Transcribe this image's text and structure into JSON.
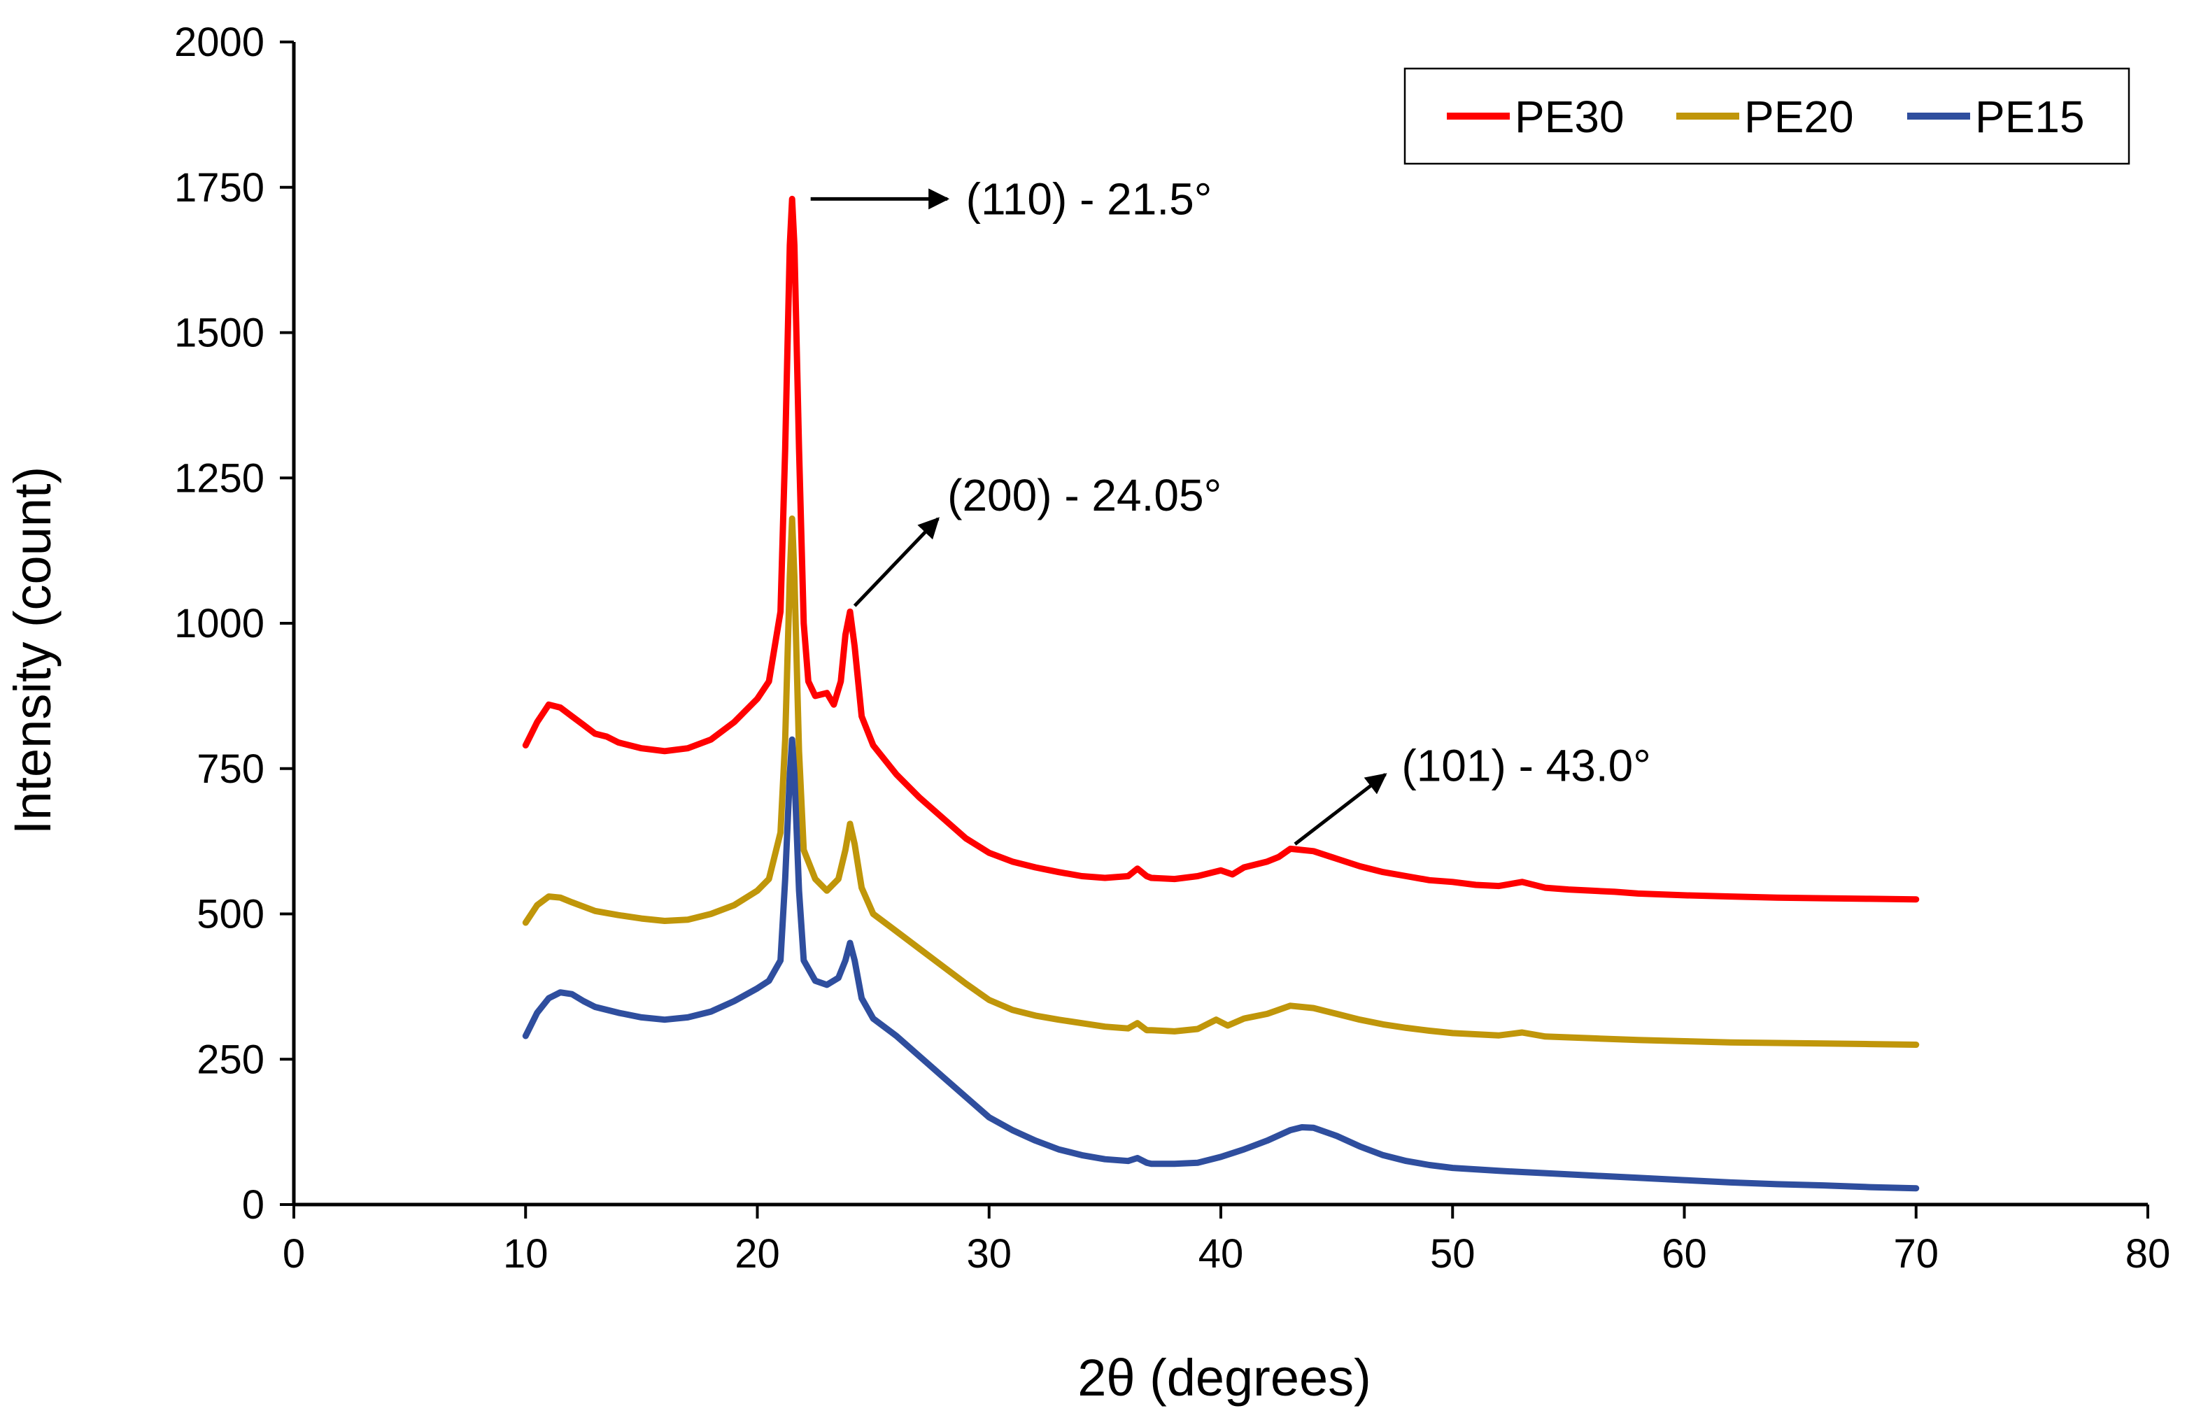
{
  "chart_data": {
    "type": "line",
    "title": "",
    "xlabel": "2θ (degrees)",
    "ylabel": "Intensity (count)",
    "xlim": [
      0,
      80
    ],
    "ylim": [
      0,
      2000
    ],
    "xticks": [
      0,
      10,
      20,
      30,
      40,
      50,
      60,
      70,
      80
    ],
    "yticks": [
      0,
      250,
      500,
      750,
      1000,
      1250,
      1500,
      1750,
      2000
    ],
    "grid": false,
    "legend_position": "top-right",
    "series": [
      {
        "name": "PE30",
        "color": "#FF0000",
        "points": [
          [
            10,
            790
          ],
          [
            10.5,
            830
          ],
          [
            11,
            860
          ],
          [
            11.5,
            855
          ],
          [
            12,
            840
          ],
          [
            12.5,
            825
          ],
          [
            13,
            810
          ],
          [
            13.5,
            805
          ],
          [
            14,
            795
          ],
          [
            15,
            785
          ],
          [
            16,
            780
          ],
          [
            17,
            785
          ],
          [
            18,
            800
          ],
          [
            19,
            830
          ],
          [
            20,
            870
          ],
          [
            20.5,
            900
          ],
          [
            21,
            1020
          ],
          [
            21.2,
            1300
          ],
          [
            21.4,
            1650
          ],
          [
            21.5,
            1730
          ],
          [
            21.6,
            1650
          ],
          [
            21.8,
            1300
          ],
          [
            22,
            1000
          ],
          [
            22.2,
            900
          ],
          [
            22.5,
            875
          ],
          [
            23,
            880
          ],
          [
            23.3,
            860
          ],
          [
            23.6,
            900
          ],
          [
            23.8,
            980
          ],
          [
            24.0,
            1020
          ],
          [
            24.2,
            960
          ],
          [
            24.5,
            840
          ],
          [
            25,
            790
          ],
          [
            26,
            740
          ],
          [
            27,
            700
          ],
          [
            28,
            665
          ],
          [
            29,
            630
          ],
          [
            30,
            605
          ],
          [
            31,
            590
          ],
          [
            32,
            580
          ],
          [
            33,
            572
          ],
          [
            34,
            565
          ],
          [
            35,
            562
          ],
          [
            36,
            565
          ],
          [
            36.4,
            578
          ],
          [
            36.8,
            565
          ],
          [
            37,
            562
          ],
          [
            38,
            560
          ],
          [
            39,
            565
          ],
          [
            40,
            575
          ],
          [
            40.5,
            568
          ],
          [
            41,
            580
          ],
          [
            42,
            590
          ],
          [
            42.5,
            598
          ],
          [
            43,
            612
          ],
          [
            44,
            608
          ],
          [
            45,
            595
          ],
          [
            46,
            582
          ],
          [
            47,
            572
          ],
          [
            48,
            565
          ],
          [
            49,
            558
          ],
          [
            50,
            555
          ],
          [
            51,
            550
          ],
          [
            52,
            548
          ],
          [
            53,
            555
          ],
          [
            54,
            545
          ],
          [
            55,
            542
          ],
          [
            56,
            540
          ],
          [
            57,
            538
          ],
          [
            58,
            535
          ],
          [
            60,
            532
          ],
          [
            62,
            530
          ],
          [
            64,
            528
          ],
          [
            66,
            527
          ],
          [
            68,
            526
          ],
          [
            70,
            525
          ]
        ]
      },
      {
        "name": "PE20",
        "color": "#C0960A",
        "points": [
          [
            10,
            485
          ],
          [
            10.5,
            515
          ],
          [
            11,
            530
          ],
          [
            11.5,
            528
          ],
          [
            12,
            520
          ],
          [
            13,
            505
          ],
          [
            14,
            498
          ],
          [
            15,
            492
          ],
          [
            16,
            488
          ],
          [
            17,
            490
          ],
          [
            18,
            500
          ],
          [
            19,
            515
          ],
          [
            20,
            540
          ],
          [
            20.5,
            560
          ],
          [
            21,
            640
          ],
          [
            21.2,
            800
          ],
          [
            21.4,
            1080
          ],
          [
            21.5,
            1180
          ],
          [
            21.6,
            1080
          ],
          [
            21.8,
            780
          ],
          [
            22,
            610
          ],
          [
            22.5,
            560
          ],
          [
            23,
            540
          ],
          [
            23.5,
            560
          ],
          [
            23.8,
            610
          ],
          [
            24.0,
            655
          ],
          [
            24.2,
            620
          ],
          [
            24.5,
            545
          ],
          [
            25,
            500
          ],
          [
            26,
            470
          ],
          [
            27,
            440
          ],
          [
            28,
            410
          ],
          [
            29,
            380
          ],
          [
            30,
            352
          ],
          [
            31,
            335
          ],
          [
            32,
            325
          ],
          [
            33,
            318
          ],
          [
            34,
            312
          ],
          [
            35,
            306
          ],
          [
            36,
            303
          ],
          [
            36.4,
            312
          ],
          [
            36.8,
            300
          ],
          [
            37,
            300
          ],
          [
            38,
            298
          ],
          [
            39,
            302
          ],
          [
            39.8,
            318
          ],
          [
            40.3,
            308
          ],
          [
            41,
            320
          ],
          [
            42,
            328
          ],
          [
            43,
            342
          ],
          [
            44,
            338
          ],
          [
            45,
            328
          ],
          [
            46,
            318
          ],
          [
            47,
            310
          ],
          [
            48,
            304
          ],
          [
            49,
            299
          ],
          [
            50,
            295
          ],
          [
            52,
            291
          ],
          [
            53,
            296
          ],
          [
            54,
            289
          ],
          [
            56,
            286
          ],
          [
            58,
            283
          ],
          [
            60,
            281
          ],
          [
            62,
            279
          ],
          [
            64,
            278
          ],
          [
            66,
            277
          ],
          [
            68,
            276
          ],
          [
            70,
            275
          ]
        ]
      },
      {
        "name": "PE15",
        "color": "#2F4E9E",
        "points": [
          [
            10,
            290
          ],
          [
            10.5,
            330
          ],
          [
            11,
            355
          ],
          [
            11.5,
            365
          ],
          [
            12,
            362
          ],
          [
            12.5,
            350
          ],
          [
            13,
            340
          ],
          [
            14,
            330
          ],
          [
            15,
            322
          ],
          [
            16,
            318
          ],
          [
            17,
            322
          ],
          [
            18,
            332
          ],
          [
            19,
            350
          ],
          [
            20,
            372
          ],
          [
            20.5,
            385
          ],
          [
            21,
            420
          ],
          [
            21.2,
            560
          ],
          [
            21.4,
            740
          ],
          [
            21.5,
            800
          ],
          [
            21.6,
            740
          ],
          [
            21.8,
            540
          ],
          [
            22,
            420
          ],
          [
            22.5,
            385
          ],
          [
            23,
            378
          ],
          [
            23.5,
            390
          ],
          [
            23.8,
            420
          ],
          [
            24.0,
            450
          ],
          [
            24.2,
            420
          ],
          [
            24.5,
            355
          ],
          [
            25,
            320
          ],
          [
            26,
            290
          ],
          [
            27,
            255
          ],
          [
            28,
            220
          ],
          [
            29,
            185
          ],
          [
            30,
            150
          ],
          [
            31,
            128
          ],
          [
            32,
            110
          ],
          [
            33,
            95
          ],
          [
            34,
            85
          ],
          [
            35,
            78
          ],
          [
            36,
            75
          ],
          [
            36.4,
            80
          ],
          [
            36.8,
            72
          ],
          [
            37,
            70
          ],
          [
            38,
            70
          ],
          [
            39,
            72
          ],
          [
            40,
            82
          ],
          [
            41,
            95
          ],
          [
            42,
            110
          ],
          [
            43,
            128
          ],
          [
            43.5,
            133
          ],
          [
            44,
            132
          ],
          [
            45,
            118
          ],
          [
            46,
            100
          ],
          [
            47,
            85
          ],
          [
            48,
            75
          ],
          [
            49,
            68
          ],
          [
            50,
            63
          ],
          [
            52,
            58
          ],
          [
            53,
            56
          ],
          [
            54,
            54
          ],
          [
            56,
            50
          ],
          [
            58,
            46
          ],
          [
            60,
            42
          ],
          [
            62,
            38
          ],
          [
            64,
            35
          ],
          [
            66,
            33
          ],
          [
            68,
            30
          ],
          [
            70,
            28
          ]
        ]
      }
    ],
    "annotations": [
      {
        "text": "(110) - 21.5°",
        "arrow_from": [
          22.3,
          1730
        ],
        "arrow_to": [
          28.2,
          1730
        ],
        "text_at": [
          29.0,
          1730
        ]
      },
      {
        "text": "(200) - 24.05°",
        "arrow_from": [
          24.2,
          1030
        ],
        "arrow_to": [
          27.8,
          1180
        ],
        "text_at": [
          28.2,
          1220
        ]
      },
      {
        "text": "(101) - 43.0°",
        "arrow_from": [
          43.2,
          620
        ],
        "arrow_to": [
          47.1,
          740
        ],
        "text_at": [
          47.8,
          755
        ]
      }
    ]
  }
}
